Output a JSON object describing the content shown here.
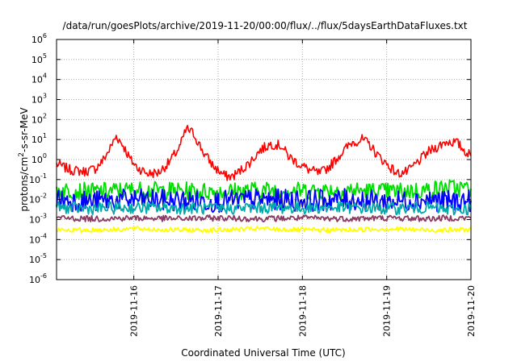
{
  "chart_data": {
    "type": "line",
    "title": "/data/run/goesPlots/archive/2019-11-20/00:00/flux/../flux/5daysEarthDataFluxes.txt",
    "xlabel": "Coordinated Universal Time (UTC)",
    "ylabel": {
      "base": "protons/cm",
      "sup": "2",
      "rest": "-s-sr-MeV"
    },
    "y_scale": "log",
    "ylim": [
      1e-06,
      1000000.0
    ],
    "y_ticks": [
      {
        "exp": -6,
        "label": "-6"
      },
      {
        "exp": -5,
        "label": "-5"
      },
      {
        "exp": -4,
        "label": "-4"
      },
      {
        "exp": -3,
        "label": "-3"
      },
      {
        "exp": -2,
        "label": "-2"
      },
      {
        "exp": -1,
        "label": "-1"
      },
      {
        "exp": 0,
        "label": "0"
      },
      {
        "exp": 1,
        "label": "1"
      },
      {
        "exp": 2,
        "label": "2"
      },
      {
        "exp": 3,
        "label": "3"
      },
      {
        "exp": 4,
        "label": "4"
      },
      {
        "exp": 5,
        "label": "5"
      },
      {
        "exp": 6,
        "label": "6"
      }
    ],
    "xlim": [
      "2019-11-15T02:00",
      "2019-11-20T00:00"
    ],
    "x_ticks": [
      "2019-11-16",
      "2019-11-17",
      "2019-11-18",
      "2019-11-19",
      "2019-11-20"
    ],
    "grid": true,
    "legend": "none",
    "series": [
      {
        "color": "#ff0000",
        "x": [
          "2019-11-15T02:00",
          "2019-11-15T06:00",
          "2019-11-15T10:00",
          "2019-11-15T13:00",
          "2019-11-15T15:00",
          "2019-11-15T17:00",
          "2019-11-15T19:00",
          "2019-11-15T21:00",
          "2019-11-15T23:00",
          "2019-11-16T01:00",
          "2019-11-16T04:00",
          "2019-11-16T07:00",
          "2019-11-16T10:00",
          "2019-11-16T13:00",
          "2019-11-16T15:00",
          "2019-11-16T17:00",
          "2019-11-16T20:00",
          "2019-11-16T23:00",
          "2019-11-17T02:00",
          "2019-11-17T04:00",
          "2019-11-17T06:00",
          "2019-11-17T09:00",
          "2019-11-17T12:00",
          "2019-11-17T15:00",
          "2019-11-17T18:00",
          "2019-11-17T20:00",
          "2019-11-17T23:00",
          "2019-11-18T02:00",
          "2019-11-18T05:00",
          "2019-11-18T08:00",
          "2019-11-18T11:00",
          "2019-11-18T14:00",
          "2019-11-18T17:00",
          "2019-11-18T19:00",
          "2019-11-18T21:00",
          "2019-11-19T00:00",
          "2019-11-19T03:00",
          "2019-11-19T06:00",
          "2019-11-19T09:00",
          "2019-11-19T12:00",
          "2019-11-19T15:00",
          "2019-11-19T17:00",
          "2019-11-19T20:00",
          "2019-11-19T22:00",
          "2019-11-20T00:00"
        ],
        "y": [
          0.6,
          0.3,
          0.25,
          0.35,
          0.8,
          3,
          15,
          5,
          1,
          0.4,
          0.2,
          0.22,
          0.7,
          4,
          35,
          20,
          2,
          0.4,
          0.15,
          0.14,
          0.25,
          0.7,
          3,
          6,
          5,
          1.5,
          0.6,
          0.3,
          0.2,
          0.5,
          2,
          7,
          10,
          6,
          2,
          0.6,
          0.2,
          0.25,
          0.8,
          2.5,
          5,
          8,
          7,
          3,
          1.5
        ]
      },
      {
        "color": "#00dd00",
        "x": [
          "2019-11-15T02:00",
          "2019-11-15T12:00",
          "2019-11-16T00:00",
          "2019-11-16T12:00",
          "2019-11-17T00:00",
          "2019-11-17T12:00",
          "2019-11-18T00:00",
          "2019-11-18T12:00",
          "2019-11-19T00:00",
          "2019-11-19T12:00",
          "2019-11-19T17:00",
          "2019-11-20T00:00"
        ],
        "y": [
          0.03,
          0.025,
          0.03,
          0.028,
          0.025,
          0.03,
          0.028,
          0.03,
          0.025,
          0.03,
          0.04,
          0.035
        ]
      },
      {
        "color": "#0000ff",
        "x": [
          "2019-11-15T02:00",
          "2019-11-15T12:00",
          "2019-11-16T00:00",
          "2019-11-16T12:00",
          "2019-11-17T00:00",
          "2019-11-17T12:00",
          "2019-11-18T00:00",
          "2019-11-18T12:00",
          "2019-11-19T00:00",
          "2019-11-19T12:00",
          "2019-11-19T17:00",
          "2019-11-20T00:00"
        ],
        "y": [
          0.01,
          0.008,
          0.01,
          0.009,
          0.008,
          0.01,
          0.009,
          0.01,
          0.008,
          0.01,
          0.008,
          0.009
        ]
      },
      {
        "color": "#00aaaa",
        "x": [
          "2019-11-15T02:00",
          "2019-11-15T12:00",
          "2019-11-16T00:00",
          "2019-11-16T12:00",
          "2019-11-17T00:00",
          "2019-11-17T12:00",
          "2019-11-18T00:00",
          "2019-11-18T12:00",
          "2019-11-19T00:00",
          "2019-11-19T12:00",
          "2019-11-19T17:00",
          "2019-11-20T00:00"
        ],
        "y": [
          0.004,
          0.0035,
          0.004,
          0.0038,
          0.0035,
          0.004,
          0.0038,
          0.004,
          0.0035,
          0.004,
          0.003,
          0.0035
        ]
      },
      {
        "color": "#8b3a62",
        "x": [
          "2019-11-15T02:00",
          "2019-11-15T12:00",
          "2019-11-16T00:00",
          "2019-11-16T12:00",
          "2019-11-17T00:00",
          "2019-11-17T12:00",
          "2019-11-18T00:00",
          "2019-11-18T12:00",
          "2019-11-19T00:00",
          "2019-11-19T12:00",
          "2019-11-19T17:00",
          "2019-11-20T00:00"
        ],
        "y": [
          0.0012,
          0.0011,
          0.0012,
          0.0011,
          0.0012,
          0.0011,
          0.0012,
          0.0011,
          0.0012,
          0.0011,
          0.0012,
          0.0012
        ]
      },
      {
        "color": "#ffff00",
        "x": [
          "2019-11-15T02:00",
          "2019-11-15T12:00",
          "2019-11-16T00:00",
          "2019-11-16T12:00",
          "2019-11-17T00:00",
          "2019-11-17T12:00",
          "2019-11-18T00:00",
          "2019-11-18T12:00",
          "2019-11-19T00:00",
          "2019-11-19T12:00",
          "2019-11-19T17:00",
          "2019-11-20T00:00"
        ],
        "y": [
          0.0003,
          0.0003,
          0.00035,
          0.0003,
          0.0003,
          0.00035,
          0.0003,
          0.0003,
          0.00035,
          0.0003,
          0.0003,
          0.00032
        ]
      }
    ]
  }
}
